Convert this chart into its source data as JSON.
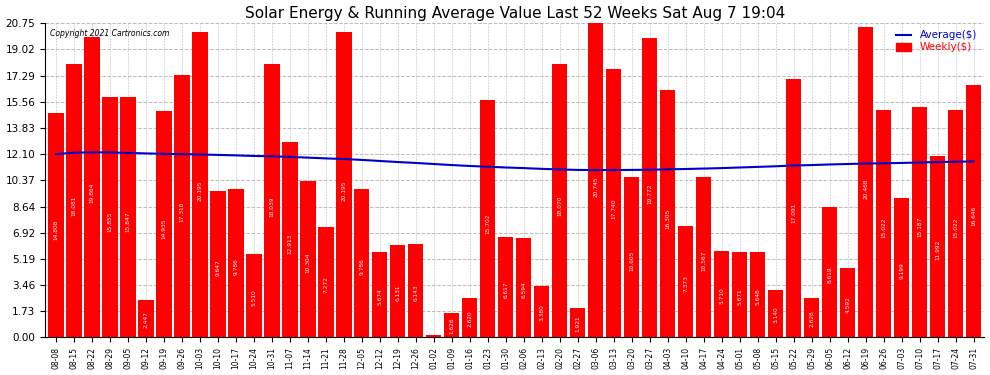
{
  "title": "Solar Energy & Running Average Value Last 52 Weeks Sat Aug 7 19:04",
  "copyright": "Copyright 2021 Cartronics.com",
  "bar_color": "#ff0000",
  "avg_line_color": "#0000cc",
  "weekly_legend_color": "#ff0000",
  "background_color": "#ffffff",
  "grid_color": "#bbbbbb",
  "categories": [
    "08-08",
    "08-15",
    "08-22",
    "08-29",
    "09-05",
    "09-12",
    "09-19",
    "09-26",
    "10-03",
    "10-10",
    "10-17",
    "10-24",
    "10-31",
    "11-07",
    "11-14",
    "11-21",
    "11-28",
    "12-05",
    "12-12",
    "12-19",
    "12-26",
    "01-02",
    "01-09",
    "01-16",
    "01-23",
    "01-30",
    "02-06",
    "02-13",
    "02-20",
    "02-27",
    "03-06",
    "03-13",
    "03-20",
    "03-27",
    "04-03",
    "04-10",
    "04-17",
    "04-24",
    "05-01",
    "05-08",
    "05-15",
    "05-22",
    "05-29",
    "06-05",
    "06-12",
    "06-19",
    "06-26",
    "07-03",
    "07-10",
    "07-17",
    "07-24",
    "07-31"
  ],
  "weekly_values": [
    14.808,
    18.081,
    19.864,
    15.855,
    15.847,
    2.447,
    14.935,
    17.318,
    20.195,
    9.647,
    9.786,
    5.51,
    18.039,
    12.913,
    10.304,
    7.272,
    20.195,
    9.786,
    5.674,
    6.131,
    6.143,
    0.179,
    1.626,
    2.62,
    15.702,
    6.617,
    6.594,
    3.38,
    18.07,
    1.921,
    20.745,
    17.74,
    10.605,
    19.772,
    16.305,
    7.373,
    10.567,
    5.71,
    5.671,
    5.648,
    3.14,
    17.091,
    2.628,
    8.619,
    4.592,
    20.468,
    15.022,
    9.199,
    15.187,
    11.992,
    15.022,
    16.646
  ],
  "avg_values": [
    12.1,
    12.2,
    12.22,
    12.22,
    12.18,
    12.15,
    12.12,
    12.1,
    12.08,
    12.05,
    12.02,
    11.98,
    11.96,
    11.92,
    11.87,
    11.82,
    11.78,
    11.72,
    11.65,
    11.58,
    11.52,
    11.45,
    11.38,
    11.32,
    11.27,
    11.22,
    11.18,
    11.13,
    11.09,
    11.06,
    11.05,
    11.05,
    11.06,
    11.07,
    11.1,
    11.12,
    11.15,
    11.18,
    11.22,
    11.26,
    11.3,
    11.35,
    11.38,
    11.42,
    11.45,
    11.48,
    11.5,
    11.52,
    11.55,
    11.58,
    11.6,
    11.62
  ],
  "yticks": [
    0.0,
    1.73,
    3.46,
    5.19,
    6.92,
    8.64,
    10.37,
    12.1,
    13.83,
    15.56,
    17.29,
    19.02,
    20.75
  ],
  "ylim": [
    0.0,
    20.75
  ],
  "title_fontsize": 11,
  "tick_fontsize": 5.5,
  "ytick_fontsize": 7.5,
  "label_fontsize": 4.2
}
